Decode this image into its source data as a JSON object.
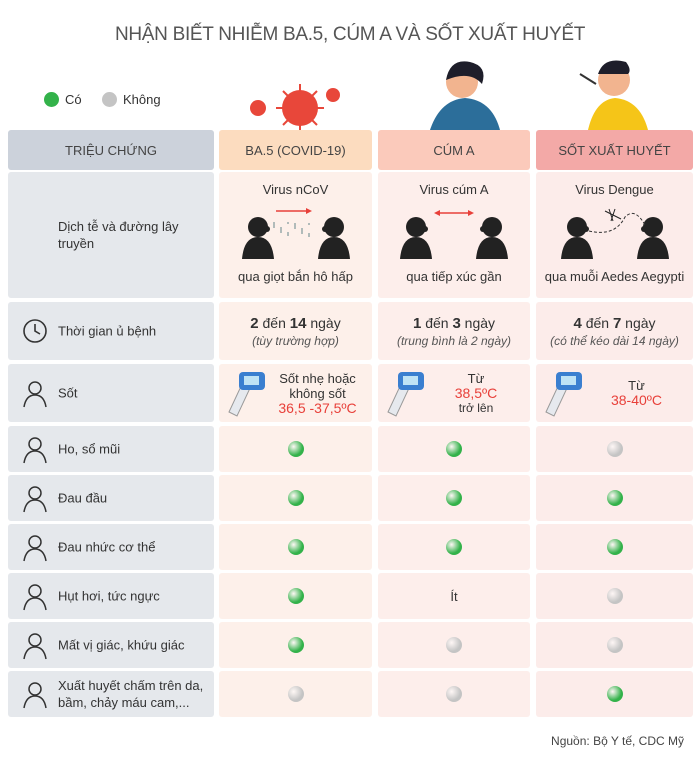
{
  "title": "NHẬN BIẾT NHIỄM BA.5, CÚM A VÀ SỐT XUẤT HUYẾT",
  "legend": [
    {
      "label": "Có",
      "color": "#33b24a"
    },
    {
      "label": "Không",
      "color": "#c4c4c4"
    }
  ],
  "table": {
    "headers": [
      "TRIỆU CHỨNG",
      "BA.5 (COVID-19)",
      "CÚM A",
      "SỐT XUẤT HUYẾT"
    ],
    "transmission": {
      "label": "Dịch tễ và đường lây truyền",
      "cells": [
        {
          "virus": "Virus nCoV",
          "route": "qua giọt bắn hô hấp"
        },
        {
          "virus": "Virus cúm A",
          "route": "qua tiếp xúc gần"
        },
        {
          "virus": "Virus Dengue",
          "route": "qua muỗi Aedes Aegypti"
        }
      ]
    },
    "incubation": {
      "label": "Thời gian ủ bệnh",
      "cells": [
        {
          "min": "2",
          "to": "đến",
          "max": "14",
          "unit": "ngày",
          "note": "(tùy trường hợp)"
        },
        {
          "min": "1",
          "to": "đến",
          "max": "3",
          "unit": "ngày",
          "note": "(trung bình là 2 ngày)"
        },
        {
          "min": "4",
          "to": "đến",
          "max": "7",
          "unit": "ngày",
          "note": "(có thể kéo dài 14 ngày)"
        }
      ]
    },
    "fever": {
      "label": "Sốt",
      "cells": [
        {
          "text": "Sốt nhẹ hoặc không sốt",
          "temp": "36,5 -37,5ºC"
        },
        {
          "text": "Từ",
          "temp": "38,5ºC",
          "after": "trở lên"
        },
        {
          "text": "Từ",
          "temp": "38-40ºC"
        }
      ]
    },
    "symptoms": [
      {
        "label": "Ho, sổ mũi",
        "cells": [
          true,
          true,
          false
        ]
      },
      {
        "label": "Đau đầu",
        "cells": [
          true,
          true,
          true
        ]
      },
      {
        "label": "Đau nhức cơ thể",
        "cells": [
          true,
          true,
          true
        ]
      },
      {
        "label": "Hụt hơi, tức ngực",
        "cells": [
          true,
          "Ít",
          false
        ]
      },
      {
        "label": "Mất vị giác, khứu giác",
        "cells": [
          true,
          false,
          false
        ]
      },
      {
        "label": "Xuất huyết chấm trên da, bầm, chảy máu cam,...",
        "cells": [
          false,
          false,
          true
        ]
      }
    ]
  },
  "source": "Nguồn: Bộ Y tế, CDC Mỹ"
}
